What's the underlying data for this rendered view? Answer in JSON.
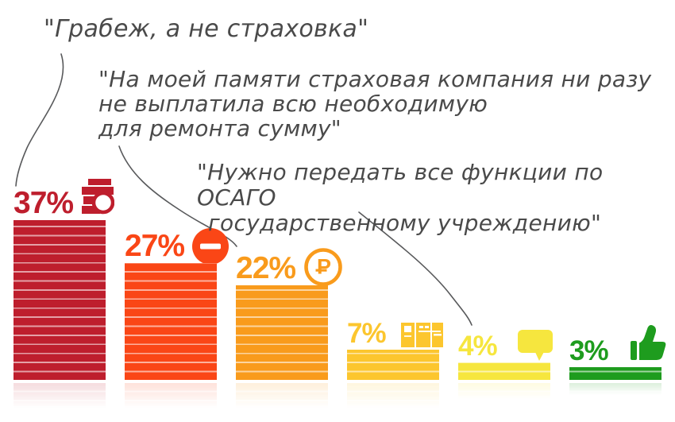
{
  "quotes": {
    "q1": {
      "lines": [
        "\"Грабеж, а не страховка\""
      ]
    },
    "q2": {
      "lines": [
        "\"На моей памяти страховая компания ни разу",
        "не выплатила всю необходимую",
        "для ремонта сумму\""
      ]
    },
    "q3": {
      "lines": [
        "\"Нужно передать все функции по ОСАГО",
        "государственному учреждению\""
      ]
    }
  },
  "chart_data": {
    "type": "bar",
    "values": [
      37,
      27,
      22,
      7,
      4,
      3
    ],
    "labels": [
      "37%",
      "27%",
      "22%",
      "7%",
      "4%",
      "3%"
    ],
    "unit": "%",
    "colors": [
      "#be1e2d",
      "#fa4616",
      "#f99b1c",
      "#fcc62e",
      "#f6e63e",
      "#1e9c1e"
    ],
    "icons": [
      "coins-stack",
      "no-entry-sign",
      "ruble-coin",
      "banknotes",
      "speech-bubble",
      "thumbs-up"
    ],
    "ylim": [
      0,
      40
    ],
    "grid": false,
    "legend": false
  },
  "text_color": "#4a4a4a",
  "line_color": "#58595b"
}
